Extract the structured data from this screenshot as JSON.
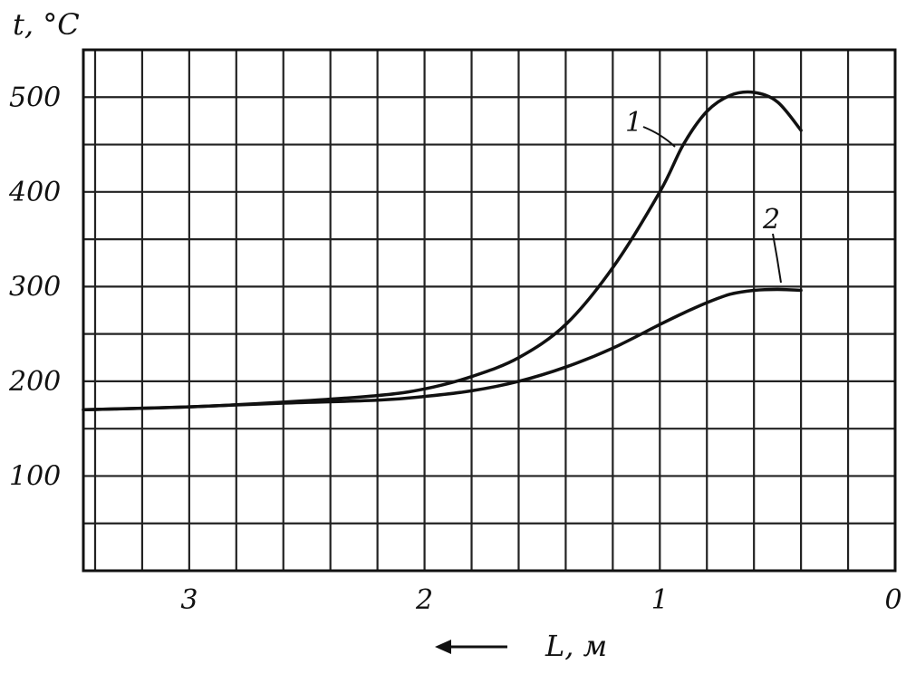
{
  "chart_data": {
    "type": "line",
    "xlabel": "L, м",
    "ylabel": "t, °C",
    "xlim": [
      3.45,
      0
    ],
    "ylim": [
      0,
      550
    ],
    "x_direction": "reversed",
    "x_ticks": [
      {
        "value": 3,
        "label": "3"
      },
      {
        "value": 2,
        "label": "2"
      },
      {
        "value": 1,
        "label": "1"
      },
      {
        "value": 0,
        "label": "0"
      }
    ],
    "y_ticks": [
      {
        "value": 100,
        "label": "100"
      },
      {
        "value": 200,
        "label": "200"
      },
      {
        "value": 300,
        "label": "300"
      },
      {
        "value": 400,
        "label": "400"
      },
      {
        "value": 500,
        "label": "500"
      }
    ],
    "grid": true,
    "series": [
      {
        "name": "1",
        "x": [
          3.45,
          3.0,
          2.6,
          2.2,
          2.0,
          1.8,
          1.6,
          1.4,
          1.2,
          1.0,
          0.9,
          0.8,
          0.7,
          0.6,
          0.5,
          0.4
        ],
        "y": [
          170,
          173,
          178,
          185,
          192,
          205,
          225,
          260,
          320,
          400,
          450,
          485,
          502,
          505,
          495,
          465
        ]
      },
      {
        "name": "2",
        "x": [
          3.45,
          3.0,
          2.6,
          2.2,
          2.0,
          1.8,
          1.6,
          1.4,
          1.2,
          1.0,
          0.9,
          0.8,
          0.7,
          0.6,
          0.5,
          0.4
        ],
        "y": [
          170,
          173,
          177,
          180,
          184,
          190,
          200,
          215,
          235,
          260,
          272,
          283,
          292,
          296,
          297,
          296
        ]
      }
    ],
    "annotations": [
      {
        "text": "1",
        "series": "1"
      },
      {
        "text": "2",
        "series": "2"
      }
    ],
    "arrow": "left"
  }
}
